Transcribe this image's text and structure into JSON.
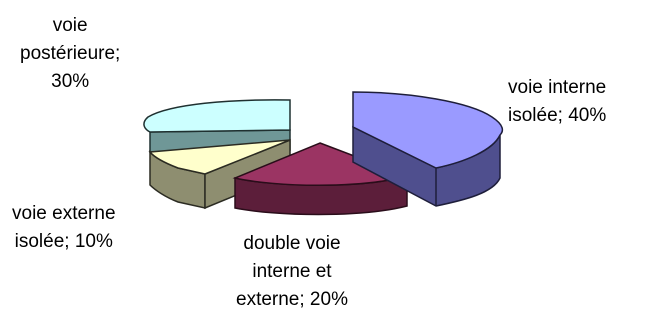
{
  "chart_data": {
    "type": "pie",
    "three_d": true,
    "exploded": true,
    "slices": [
      {
        "label_lines": [
          "voie interne",
          "isolée; 40%"
        ],
        "value": 40,
        "top": "#9a9aff",
        "side": "#4f4f8e",
        "edge": "#1e1e3a"
      },
      {
        "label_lines": [
          "double voie",
          "interne et",
          "externe; 20%"
        ],
        "value": 20,
        "top": "#9b3463",
        "side": "#5c1e3a",
        "edge": "#2a0d1a"
      },
      {
        "label_lines": [
          "voie externe",
          "isolée; 10%"
        ],
        "value": 10,
        "top": "#ffffcc",
        "side": "#8e8e70",
        "edge": "#2b2b22"
      },
      {
        "label_lines": [
          "voie",
          "postérieure;",
          "30%"
        ],
        "value": 30,
        "top": "#ccffff",
        "side": "#6f9797",
        "edge": "#1f3030"
      }
    ]
  }
}
